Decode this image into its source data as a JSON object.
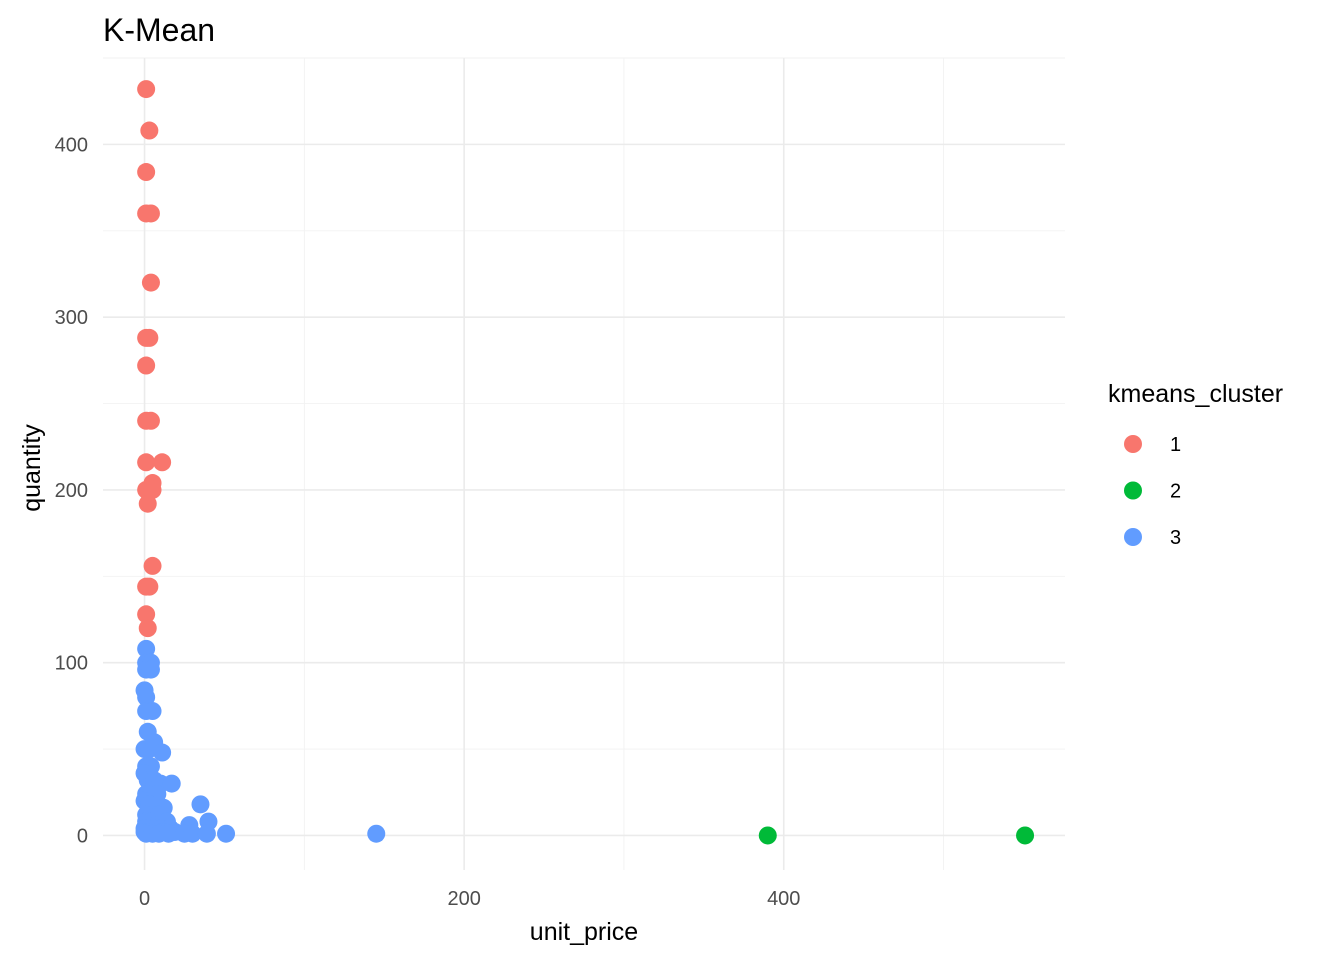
{
  "chart_data": {
    "type": "scatter",
    "title": "K-Mean",
    "xlabel": "unit_price",
    "ylabel": "quantity",
    "xlim": [
      -26,
      576
    ],
    "ylim": [
      -20,
      450
    ],
    "x_ticks": [
      0,
      200,
      400
    ],
    "x_tick_labels": [
      "0",
      "200",
      "400"
    ],
    "y_ticks": [
      0,
      100,
      200,
      300,
      400
    ],
    "y_tick_labels": [
      "0",
      "100",
      "200",
      "300",
      "400"
    ],
    "grid": true,
    "legend": {
      "title": "kmeans_cluster",
      "position": "right"
    },
    "series": [
      {
        "name": "1",
        "color": "#F8766D",
        "points": [
          [
            1,
            432
          ],
          [
            3,
            408
          ],
          [
            1,
            384
          ],
          [
            1,
            360
          ],
          [
            4,
            360
          ],
          [
            4,
            320
          ],
          [
            1,
            288
          ],
          [
            3,
            288
          ],
          [
            1,
            272
          ],
          [
            1,
            240
          ],
          [
            4,
            240
          ],
          [
            1,
            216
          ],
          [
            11,
            216
          ],
          [
            5,
            204
          ],
          [
            1,
            200
          ],
          [
            5,
            200
          ],
          [
            2,
            192
          ],
          [
            5,
            156
          ],
          [
            1,
            144
          ],
          [
            3,
            144
          ],
          [
            1,
            128
          ],
          [
            2,
            120
          ]
        ]
      },
      {
        "name": "2",
        "color": "#00BA38",
        "points": [
          [
            390,
            0
          ],
          [
            551,
            0
          ]
        ]
      },
      {
        "name": "3",
        "color": "#619CFF",
        "points": [
          [
            1,
            108
          ],
          [
            1,
            100
          ],
          [
            4,
            100
          ],
          [
            1,
            96
          ],
          [
            4,
            96
          ],
          [
            0,
            84
          ],
          [
            1,
            80
          ],
          [
            1,
            72
          ],
          [
            5,
            72
          ],
          [
            2,
            60
          ],
          [
            0,
            50
          ],
          [
            3,
            50
          ],
          [
            6,
            54
          ],
          [
            11,
            48
          ],
          [
            1,
            40
          ],
          [
            4,
            40
          ],
          [
            0,
            36
          ],
          [
            2,
            32
          ],
          [
            6,
            32
          ],
          [
            10,
            30
          ],
          [
            17,
            30
          ],
          [
            1,
            24
          ],
          [
            4,
            24
          ],
          [
            8,
            24
          ],
          [
            0,
            20
          ],
          [
            3,
            18
          ],
          [
            12,
            16
          ],
          [
            35,
            18
          ],
          [
            1,
            12
          ],
          [
            5,
            12
          ],
          [
            9,
            12
          ],
          [
            1,
            8
          ],
          [
            4,
            8
          ],
          [
            7,
            6
          ],
          [
            14,
            8
          ],
          [
            40,
            8
          ],
          [
            0,
            4
          ],
          [
            3,
            4
          ],
          [
            6,
            4
          ],
          [
            10,
            4
          ],
          [
            16,
            4
          ],
          [
            28,
            6
          ],
          [
            0,
            2
          ],
          [
            2,
            2
          ],
          [
            4,
            2
          ],
          [
            8,
            2
          ],
          [
            12,
            2
          ],
          [
            19,
            2
          ],
          [
            1,
            1
          ],
          [
            5,
            1
          ],
          [
            9,
            1
          ],
          [
            15,
            1
          ],
          [
            25,
            1
          ],
          [
            30,
            1
          ],
          [
            39,
            1
          ],
          [
            51,
            1
          ],
          [
            145,
            1
          ]
        ]
      }
    ]
  }
}
